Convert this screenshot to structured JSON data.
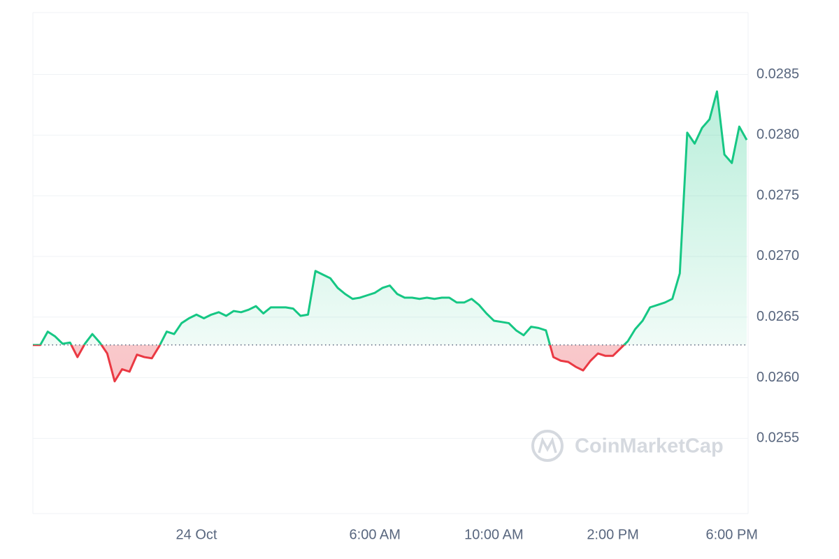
{
  "chart_data": {
    "type": "line",
    "watermark": "CoinMarketCap",
    "categories": [
      null,
      null,
      null,
      null,
      null,
      null,
      null,
      null,
      null,
      null,
      null,
      null,
      null,
      null,
      null,
      null,
      null,
      null,
      null,
      null,
      null,
      null,
      "24 Oct",
      null,
      null,
      null,
      null,
      null,
      null,
      null,
      null,
      null,
      null,
      null,
      null,
      null,
      null,
      null,
      null,
      null,
      null,
      null,
      null,
      null,
      null,
      null,
      "6:00 AM",
      null,
      null,
      null,
      null,
      null,
      null,
      null,
      null,
      null,
      null,
      null,
      null,
      null,
      null,
      null,
      "10:00 AM",
      null,
      null,
      null,
      null,
      null,
      null,
      null,
      null,
      null,
      null,
      null,
      null,
      null,
      null,
      null,
      "2:00 PM",
      null,
      null,
      null,
      null,
      null,
      null,
      null,
      null,
      null,
      null,
      null,
      null,
      null,
      null,
      null,
      "6:00 PM",
      null,
      null
    ],
    "values": [
      0.02627,
      0.02627,
      0.02638,
      0.02634,
      0.02628,
      0.02629,
      0.02617,
      0.02628,
      0.02636,
      0.02629,
      0.0262,
      0.02597,
      0.02607,
      0.02605,
      0.02619,
      0.02617,
      0.02616,
      0.02626,
      0.02638,
      0.02636,
      0.02645,
      0.02649,
      0.02652,
      0.02649,
      0.02652,
      0.02654,
      0.02651,
      0.02655,
      0.02654,
      0.02656,
      0.02659,
      0.02653,
      0.02658,
      0.02658,
      0.02658,
      0.02657,
      0.02651,
      0.02652,
      0.02688,
      0.02685,
      0.02682,
      0.02674,
      0.02669,
      0.02665,
      0.02666,
      0.02668,
      0.0267,
      0.02674,
      0.02676,
      0.02669,
      0.02666,
      0.02666,
      0.02665,
      0.02666,
      0.02665,
      0.02666,
      0.02666,
      0.02662,
      0.02662,
      0.02665,
      0.0266,
      0.02653,
      0.02647,
      0.02646,
      0.02645,
      0.02639,
      0.02635,
      0.02642,
      0.02641,
      0.02639,
      0.02617,
      0.02614,
      0.02613,
      0.02609,
      0.02606,
      0.02614,
      0.0262,
      0.02618,
      0.02618,
      0.02624,
      0.0263,
      0.0264,
      0.02647,
      0.02658,
      0.0266,
      0.02662,
      0.02665,
      0.02686,
      0.02802,
      0.02793,
      0.02806,
      0.02813,
      0.02836,
      0.02784,
      0.02777,
      0.02807,
      0.02796
    ],
    "baseline": 0.02627,
    "up_color": "#16c784",
    "down_color": "#ea3943",
    "ylim": [
      0.02488,
      0.02901
    ],
    "yticks": [
      0.0255,
      {
        "value": 0.026,
        "label": "0.0260"
      },
      0.0265,
      {
        "value": 0.027,
        "label": "0.0270"
      },
      0.0275,
      {
        "value": 0.028,
        "label": "0.0280"
      },
      0.0285
    ],
    "grid": true
  }
}
